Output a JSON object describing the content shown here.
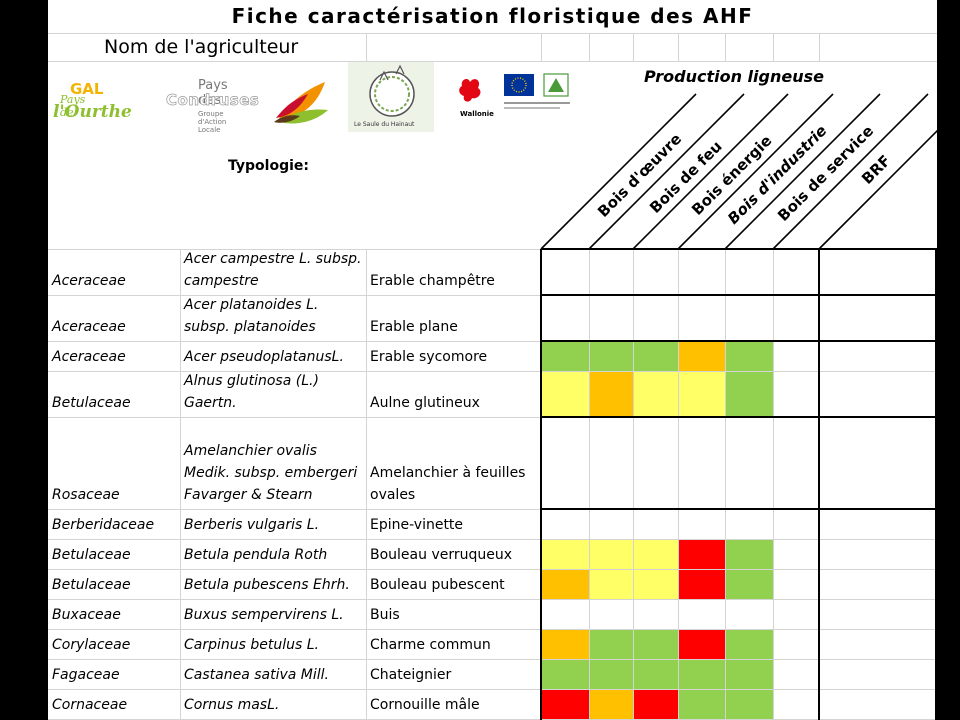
{
  "sheet": {
    "title": "Fiche caractérisation floristique des AHF",
    "farmer_label": "Nom de l'agriculteur",
    "typologie_label": "Typologie:",
    "production_label": "Production ligneuse"
  },
  "logos": {
    "gal_line1": "GAL",
    "gal_line2": "Pays de",
    "gal_line3": "l'Ourthe",
    "pays_line1": "Pays des",
    "pays_line2": "Condruses",
    "pays_line3": "Groupe d'Action Locale",
    "saule_text": "Le Saule du Hainaut",
    "wallonie_text": "Wallonie"
  },
  "columns": [
    "Bois d'œuvre",
    "Bois de feu",
    "Bois énergie",
    "Bois d'industrie",
    "Bois de service",
    "BRF"
  ],
  "colors": {
    "green": "#92d050",
    "yellow": "#ffff66",
    "orange": "#ffc000",
    "red": "#ff0000"
  },
  "rows": [
    {
      "family": "Aceraceae",
      "scientific": "Acer campestre L. subsp. campestre",
      "common": "Erable champêtre",
      "cells": [
        null,
        null,
        null,
        null,
        null,
        null
      ]
    },
    {
      "family": "Aceraceae",
      "scientific": "Acer platanoides L. subsp. platanoides",
      "common": "Erable plane",
      "cells": [
        null,
        null,
        null,
        null,
        null,
        null
      ]
    },
    {
      "family": "Aceraceae",
      "scientific": "Acer pseudoplatanusL.",
      "common": "Erable sycomore",
      "cells": [
        "green",
        "green",
        "green",
        "orange",
        "green",
        null
      ]
    },
    {
      "family": "Betulaceae",
      "scientific": "Alnus glutinosa (L.) Gaertn.",
      "common": "Aulne glutineux",
      "cells": [
        "yellow",
        "orange",
        "yellow",
        "yellow",
        "green",
        null
      ]
    },
    {
      "family": "Rosaceae",
      "scientific": "Amelanchier ovalis Medik. subsp. embergeri Favarger & Stearn",
      "common": "Amelanchier à feuilles ovales",
      "cells": [
        null,
        null,
        null,
        null,
        null,
        null
      ]
    },
    {
      "family": "Berberidaceae",
      "scientific": "Berberis vulgaris L.",
      "common": "Epine-vinette",
      "cells": [
        null,
        null,
        null,
        null,
        null,
        null
      ]
    },
    {
      "family": "Betulaceae",
      "scientific": "Betula pendula Roth",
      "common": "Bouleau verruqueux",
      "cells": [
        "yellow",
        "yellow",
        "yellow",
        "red",
        "green",
        null
      ]
    },
    {
      "family": "Betulaceae",
      "scientific": "Betula pubescens Ehrh.",
      "common": "Bouleau pubescent",
      "cells": [
        "orange",
        "yellow",
        "yellow",
        "red",
        "green",
        null
      ]
    },
    {
      "family": "Buxaceae",
      "scientific": "Buxus sempervirens L.",
      "common": "Buis",
      "cells": [
        null,
        null,
        null,
        null,
        null,
        null
      ]
    },
    {
      "family": "Corylaceae",
      "scientific": "Carpinus betulus L.",
      "common": "Charme commun",
      "cells": [
        "orange",
        "green",
        "green",
        "red",
        "green",
        null
      ]
    },
    {
      "family": "Fagaceae",
      "scientific": "Castanea sativa Mill.",
      "common": "Chateignier",
      "cells": [
        "green",
        "green",
        "green",
        "green",
        "green",
        null
      ]
    },
    {
      "family": "Cornaceae",
      "scientific": "Cornus masL.",
      "common": "Cornouille mâle",
      "cells": [
        "red",
        "orange",
        "red",
        "green",
        "green",
        null
      ]
    }
  ]
}
